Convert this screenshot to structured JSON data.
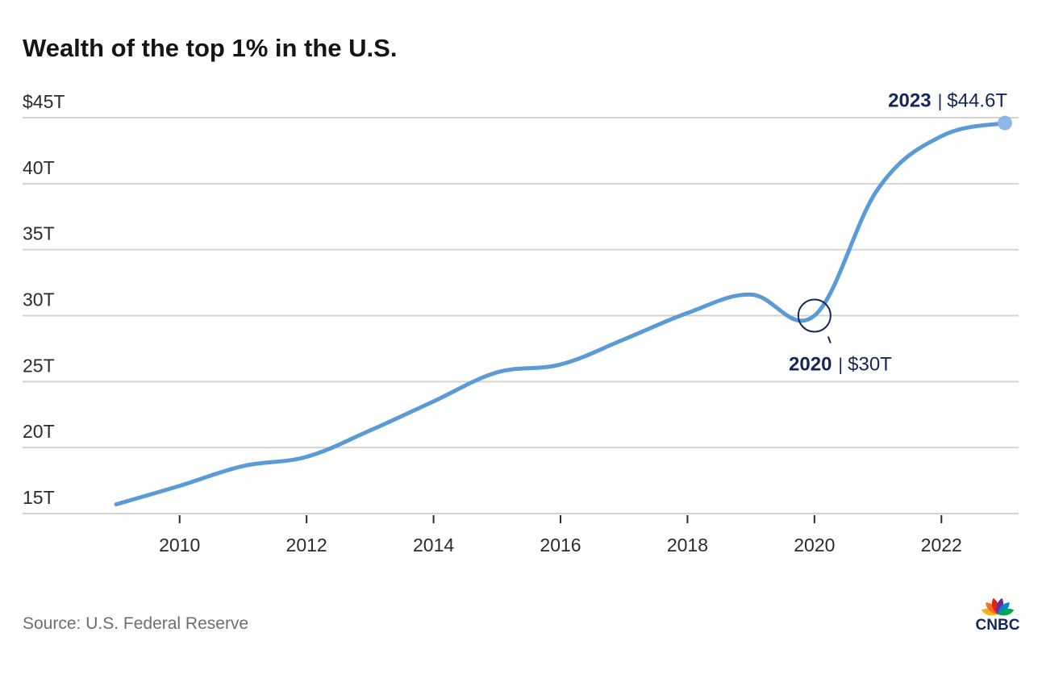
{
  "chart_data": {
    "type": "line",
    "title": "Wealth of the top 1% in the U.S.",
    "xlabel": "",
    "ylabel": "",
    "x": [
      2009,
      2010,
      2011,
      2012,
      2013,
      2014,
      2015,
      2016,
      2017,
      2018,
      2019,
      2020,
      2021,
      2022,
      2023
    ],
    "series": [
      {
        "name": "Wealth of the top 1%",
        "unit": "trillion USD",
        "color": "#5b9bd5",
        "values": [
          15.7,
          17.1,
          18.6,
          19.3,
          21.3,
          23.5,
          25.7,
          26.3,
          28.2,
          30.2,
          31.6,
          30.0,
          39.6,
          43.6,
          44.6
        ]
      }
    ],
    "xlim": [
      2009,
      2023
    ],
    "ylim": [
      15,
      45
    ],
    "yticks": [
      15,
      20,
      25,
      30,
      35,
      40,
      45
    ],
    "ytick_labels": [
      "15T",
      "20T",
      "25T",
      "30T",
      "35T",
      "40T",
      "$45T"
    ],
    "xticks": [
      2010,
      2012,
      2014,
      2016,
      2018,
      2020,
      2022
    ],
    "xtick_labels": [
      "2010",
      "2012",
      "2014",
      "2016",
      "2018",
      "2020",
      "2022"
    ],
    "grid": "horizontal",
    "legend": "none",
    "annotations": [
      {
        "year_label": "2023",
        "separator": "|",
        "value_label": "$44.6T",
        "x": 2023,
        "y": 44.6,
        "marker": "dot"
      },
      {
        "year_label": "2020",
        "separator": "|",
        "value_label": "$30T",
        "x": 2020,
        "y": 30.0,
        "marker": "ring"
      }
    ],
    "source": "Source: U.S. Federal Reserve"
  },
  "branding": {
    "logo_text": "CNBC",
    "logo_icon": "peacock-icon",
    "peacock_colors": [
      "#f5b21a",
      "#f37021",
      "#e2231a",
      "#6e2c91",
      "#0089cf",
      "#00a651"
    ]
  },
  "colors": {
    "line": "#5b9bd5",
    "annotation": "#13275a",
    "grid": "#d4d4d4"
  }
}
